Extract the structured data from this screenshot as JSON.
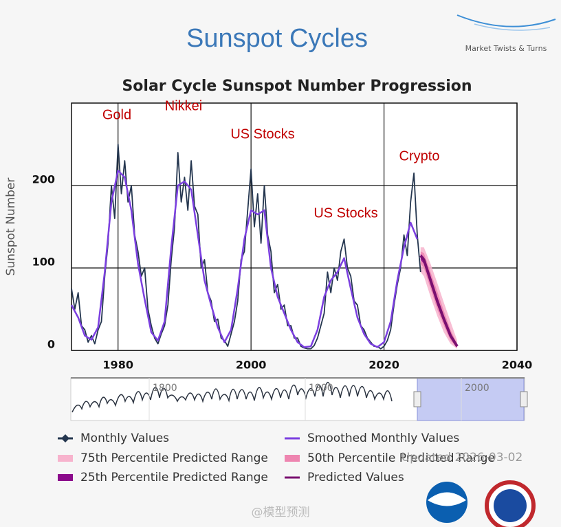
{
  "heading": "Sunspot Cycles",
  "logo_text": "Market Twists & Turns",
  "watermark": "@模型预测",
  "updated": "Updated 2026-03-02",
  "chart_data": {
    "type": "line",
    "title": "Solar Cycle Sunspot Number Progression",
    "y_label": "Sunspot Number",
    "xlim": [
      1973,
      2040
    ],
    "xticks": [
      1980,
      2000,
      2020,
      2040
    ],
    "ylim": [
      0,
      300
    ],
    "yticks": [
      0,
      100,
      200
    ],
    "grid": true,
    "annotations": [
      "Gold",
      "Nikkei",
      "US Stocks",
      "US Stocks",
      "Crypto"
    ],
    "series": [
      {
        "name": "Monthly Values",
        "color": "#24364f",
        "x": [
          1973,
          1973.5,
          1974,
          1974.5,
          1975,
          1975.5,
          1976,
          1976.5,
          1977,
          1977.5,
          1978,
          1978.5,
          1979,
          1979.5,
          1980,
          1980.5,
          1981,
          1981.5,
          1982,
          1982.5,
          1983,
          1983.5,
          1984,
          1984.5,
          1985,
          1985.5,
          1986,
          1986.5,
          1987,
          1987.5,
          1988,
          1988.5,
          1989,
          1989.5,
          1990,
          1990.5,
          1991,
          1991.5,
          1992,
          1992.5,
          1993,
          1993.5,
          1994,
          1994.5,
          1995,
          1995.5,
          1996,
          1996.5,
          1997,
          1997.5,
          1998,
          1998.5,
          1999,
          1999.5,
          2000,
          2000.5,
          2001,
          2001.5,
          2002,
          2002.5,
          2003,
          2003.5,
          2004,
          2004.5,
          2005,
          2005.5,
          2006,
          2006.5,
          2007,
          2007.5,
          2008,
          2008.5,
          2009,
          2009.5,
          2010,
          2010.5,
          2011,
          2011.5,
          2012,
          2012.5,
          2013,
          2013.5,
          2014,
          2014.5,
          2015,
          2015.5,
          2016,
          2016.5,
          2017,
          2017.5,
          2018,
          2018.5,
          2019,
          2019.5,
          2020,
          2020.5,
          2021,
          2021.5,
          2022,
          2022.5,
          2023,
          2023.5,
          2024,
          2024.5,
          2025,
          2025.5
        ],
        "values": [
          75,
          50,
          70,
          30,
          25,
          10,
          18,
          8,
          25,
          35,
          90,
          130,
          200,
          160,
          250,
          190,
          230,
          180,
          200,
          140,
          120,
          90,
          100,
          50,
          30,
          15,
          8,
          20,
          30,
          55,
          110,
          150,
          240,
          180,
          210,
          170,
          230,
          175,
          165,
          100,
          110,
          70,
          60,
          35,
          38,
          15,
          12,
          5,
          20,
          35,
          60,
          110,
          120,
          170,
          220,
          150,
          190,
          130,
          200,
          140,
          120,
          70,
          80,
          50,
          55,
          30,
          30,
          15,
          15,
          5,
          3,
          2,
          2,
          6,
          15,
          30,
          45,
          95,
          70,
          100,
          85,
          120,
          135,
          100,
          90,
          60,
          55,
          30,
          25,
          15,
          10,
          5,
          5,
          2,
          5,
          12,
          25,
          55,
          80,
          100,
          140,
          115,
          180,
          215,
          140,
          95
        ]
      },
      {
        "name": "Smoothed Monthly Values",
        "color": "#7b3fe0",
        "x": [
          1973,
          1974,
          1975,
          1976,
          1977,
          1978,
          1979,
          1980,
          1981,
          1982,
          1983,
          1984,
          1985,
          1986,
          1987,
          1988,
          1989,
          1990,
          1991,
          1992,
          1993,
          1994,
          1995,
          1996,
          1997,
          1998,
          1999,
          2000,
          2001,
          2002,
          2003,
          2004,
          2005,
          2006,
          2007,
          2008,
          2009,
          2010,
          2011,
          2012,
          2013,
          2014,
          2015,
          2016,
          2017,
          2018,
          2019,
          2020,
          2021,
          2022,
          2023,
          2024,
          2025
        ],
        "values": [
          55,
          40,
          18,
          13,
          28,
          95,
          180,
          218,
          210,
          170,
          105,
          62,
          22,
          12,
          35,
          125,
          200,
          205,
          195,
          140,
          85,
          55,
          28,
          10,
          25,
          75,
          135,
          170,
          165,
          170,
          100,
          65,
          45,
          25,
          10,
          4,
          5,
          25,
          65,
          85,
          95,
          112,
          75,
          40,
          20,
          8,
          4,
          10,
          35,
          85,
          125,
          155,
          135
        ]
      },
      {
        "name": "Predicted Values",
        "color": "#7a1070",
        "x": [
          2025.5,
          2026,
          2027,
          2028,
          2029,
          2030,
          2031
        ],
        "values": [
          115,
          110,
          85,
          60,
          38,
          18,
          5
        ]
      }
    ],
    "bands": [
      {
        "name": "75th Percentile Predicted Range",
        "color": "#f7b3cd",
        "x": [
          2025.5,
          2026,
          2027,
          2028,
          2029,
          2030,
          2031
        ],
        "low": [
          95,
          90,
          65,
          42,
          22,
          8,
          2
        ],
        "high": [
          125,
          125,
          105,
          82,
          58,
          35,
          12
        ]
      },
      {
        "name": "50th Percentile Predicted Range",
        "color": "#ee85b0",
        "x": [
          2025.5,
          2026,
          2027,
          2028,
          2029,
          2030,
          2031
        ],
        "low": [
          105,
          100,
          75,
          50,
          30,
          12,
          3
        ],
        "high": [
          120,
          118,
          95,
          72,
          48,
          25,
          8
        ]
      },
      {
        "name": "25th Percentile Predicted Range",
        "color": "#8b0a8b",
        "x": [
          2025.5,
          2026,
          2027,
          2028,
          2029,
          2030,
          2031
        ],
        "low": [
          110,
          105,
          80,
          55,
          34,
          15,
          4
        ],
        "high": [
          117,
          113,
          90,
          65,
          42,
          21,
          6
        ]
      }
    ],
    "navigator": {
      "xticks": [
        1800,
        1900,
        2000
      ]
    }
  }
}
